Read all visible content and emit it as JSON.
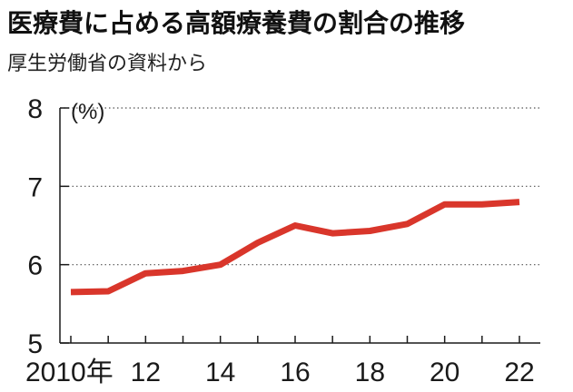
{
  "title": "医療費に占める高額療養費の割合の推移",
  "subtitle": "厚生労働省の資料から",
  "colors": {
    "line": "#d9362b",
    "axis": "#1a1a1a",
    "grid": "#555555"
  },
  "chart_data": {
    "type": "line",
    "ylabel": "(%)",
    "ylim": [
      5,
      8
    ],
    "grid": "dotted horizontal",
    "yticks": [
      {
        "value": 5,
        "label": "5"
      },
      {
        "value": 6,
        "label": "6"
      },
      {
        "value": 7,
        "label": "7"
      },
      {
        "value": 8,
        "label": "8"
      }
    ],
    "xticks": [
      {
        "value": 2010,
        "label": "2010年"
      },
      {
        "value": 2012,
        "label": "12"
      },
      {
        "value": 2014,
        "label": "14"
      },
      {
        "value": 2016,
        "label": "16"
      },
      {
        "value": 2018,
        "label": "18"
      },
      {
        "value": 2020,
        "label": "20"
      },
      {
        "value": 2022,
        "label": "22"
      }
    ],
    "xlim": [
      2010,
      2022
    ],
    "series": [
      {
        "x": [
          2010,
          2011,
          2012,
          2013,
          2014,
          2015,
          2016,
          2017,
          2018,
          2019,
          2020,
          2021,
          2022
        ],
        "values": [
          5.65,
          5.66,
          5.89,
          5.92,
          6.0,
          6.28,
          6.5,
          6.4,
          6.43,
          6.52,
          6.77,
          6.77,
          6.8
        ]
      }
    ]
  }
}
